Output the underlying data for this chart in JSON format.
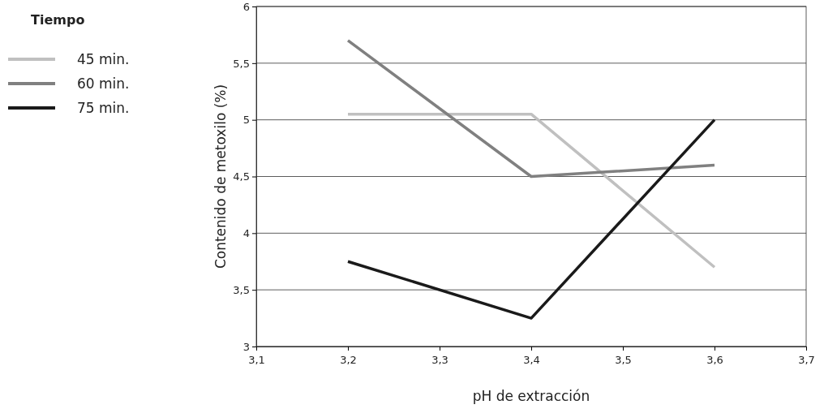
{
  "chart_data": {
    "type": "line",
    "xlabel": "pH de extracción",
    "ylabel": "Contenido de metoxilo (%)",
    "legend_title": "Tiempo",
    "legend": "left",
    "grid": "y",
    "marker": "none",
    "line_style": "solid",
    "x": [
      3.2,
      3.4,
      3.6
    ],
    "xlim": [
      3.1,
      3.7
    ],
    "xticks": [
      {
        "value": 3.1,
        "label": "3,1"
      },
      {
        "value": 3.2,
        "label": "3,2"
      },
      {
        "value": 3.3,
        "label": "3,3"
      },
      {
        "value": 3.4,
        "label": "3,4"
      },
      {
        "value": 3.5,
        "label": "3,5"
      },
      {
        "value": 3.6,
        "label": "3,6"
      },
      {
        "value": 3.7,
        "label": "3,7"
      }
    ],
    "ylim": [
      3,
      6
    ],
    "yticks": [
      3,
      {
        "value": 3.5,
        "label": "3,5"
      },
      4,
      {
        "value": 4.5,
        "label": "4,5"
      },
      5,
      {
        "value": 5.5,
        "label": "5,5"
      },
      6
    ],
    "series": [
      {
        "name": "45 min.",
        "color": "#c0c0c0",
        "values": [
          5.05,
          5.05,
          3.7
        ]
      },
      {
        "name": "60 min.",
        "color": "#808080",
        "values": [
          5.7,
          4.5,
          4.6
        ]
      },
      {
        "name": "75 min.",
        "color": "#1a1a1a",
        "values": [
          3.75,
          3.25,
          5.0
        ]
      }
    ]
  }
}
